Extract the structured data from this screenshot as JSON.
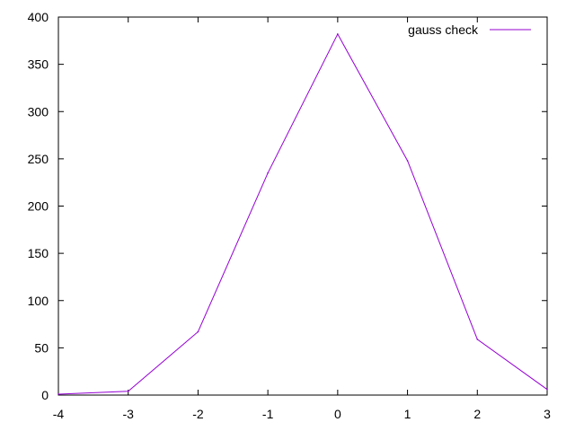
{
  "chart_data": {
    "type": "line",
    "title": "",
    "xlabel": "",
    "ylabel": "",
    "xlim": [
      -4,
      3
    ],
    "ylim": [
      0,
      400
    ],
    "x_ticks": [
      "-4",
      "-3",
      "-2",
      "-1",
      "0",
      "1",
      "2",
      "3"
    ],
    "y_ticks": [
      "0",
      "50",
      "100",
      "150",
      "200",
      "250",
      "300",
      "350",
      "400"
    ],
    "grid": false,
    "legend_position": "top-right",
    "series": [
      {
        "name": "gauss check",
        "color": "#9400d3",
        "x": [
          -4,
          -3,
          -2,
          -1,
          0,
          1,
          2,
          3
        ],
        "y": [
          1,
          4,
          67,
          235,
          382,
          248,
          59,
          6
        ]
      }
    ]
  }
}
